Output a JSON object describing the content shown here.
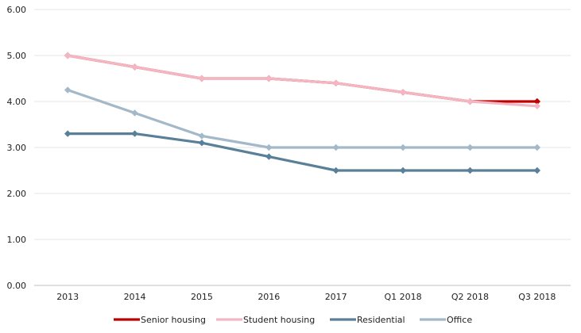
{
  "chart_data": {
    "type": "line",
    "title": "",
    "xlabel": "",
    "ylabel": "",
    "categories": [
      "2013",
      "2014",
      "2015",
      "2016",
      "2017",
      "Q1 2018",
      "Q2 2018",
      "Q3 2018"
    ],
    "y_ticks": [
      "0.00",
      "1.00",
      "2.00",
      "3.00",
      "4.00",
      "5.00",
      "6.00"
    ],
    "ylim": [
      0,
      6
    ],
    "grid": "horizontal",
    "legend_position": "bottom",
    "series": [
      {
        "name": "Senior housing",
        "color": "#c00000",
        "values": [
          5.0,
          4.75,
          4.5,
          4.5,
          4.4,
          4.2,
          4.0,
          4.0
        ]
      },
      {
        "name": "Student housing",
        "color": "#f4b6c2",
        "values": [
          5.0,
          4.75,
          4.5,
          4.5,
          4.4,
          4.2,
          4.0,
          3.9
        ]
      },
      {
        "name": "Residential",
        "color": "#5a7f99",
        "values": [
          3.3,
          3.3,
          3.1,
          2.8,
          2.5,
          2.5,
          2.5,
          2.5
        ]
      },
      {
        "name": "Office",
        "color": "#a3b8c8",
        "values": [
          4.25,
          3.75,
          3.25,
          3.0,
          3.0,
          3.0,
          3.0,
          3.0
        ]
      }
    ]
  }
}
